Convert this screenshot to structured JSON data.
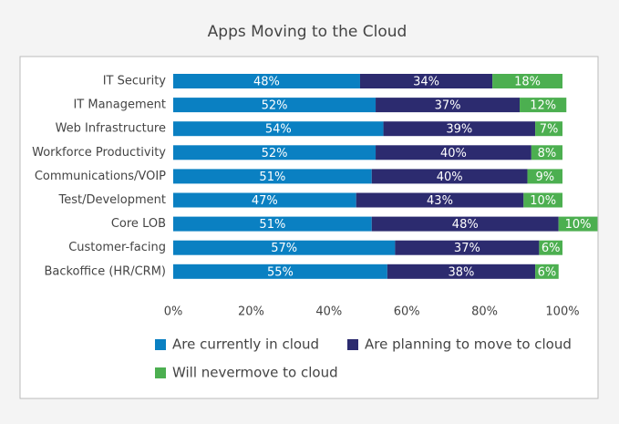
{
  "chart_data": {
    "type": "stacked-bar-horizontal",
    "title": "Apps Moving to the Cloud",
    "categories": [
      "IT Security",
      "IT Management",
      "Web Infrastructure",
      "Workforce Productivity",
      "Communications/VOIP",
      "Test/Development",
      "Core LOB",
      "Customer-facing",
      "Backoffice (HR/CRM)"
    ],
    "series": [
      {
        "name": "Are currently in cloud",
        "color": "#0a80c2",
        "values": [
          48,
          52,
          54,
          52,
          51,
          47,
          51,
          57,
          55
        ],
        "value_labels": [
          "48%",
          "52%",
          "54%",
          "52%",
          "51%",
          "47%",
          "51%",
          "57%",
          "55%"
        ]
      },
      {
        "name": "Are planning to move to cloud",
        "color": "#2c2b6f",
        "values": [
          34,
          37,
          39,
          40,
          40,
          43,
          48,
          37,
          38
        ],
        "value_labels": [
          "34%",
          "37%",
          "39%",
          "40%",
          "40%",
          "43%",
          "48%",
          "37%",
          "38%"
        ]
      },
      {
        "name": "Will nevermove to cloud",
        "color": "#4caf50",
        "values": [
          18,
          12,
          7,
          8,
          9,
          10,
          10,
          6,
          6
        ],
        "value_labels": [
          "18%",
          "12%",
          "7%",
          "8%",
          "9%",
          "10%",
          "10%",
          "6%",
          "6%"
        ]
      }
    ],
    "xlim": [
      0,
      100
    ],
    "xticks": [
      {
        "value": 0,
        "label": "0%"
      },
      {
        "value": 20,
        "label": "20%"
      },
      {
        "value": 40,
        "label": "40%"
      },
      {
        "value": 60,
        "label": "60%"
      },
      {
        "value": 80,
        "label": "80%"
      },
      {
        "value": 100,
        "label": "100%"
      }
    ]
  }
}
